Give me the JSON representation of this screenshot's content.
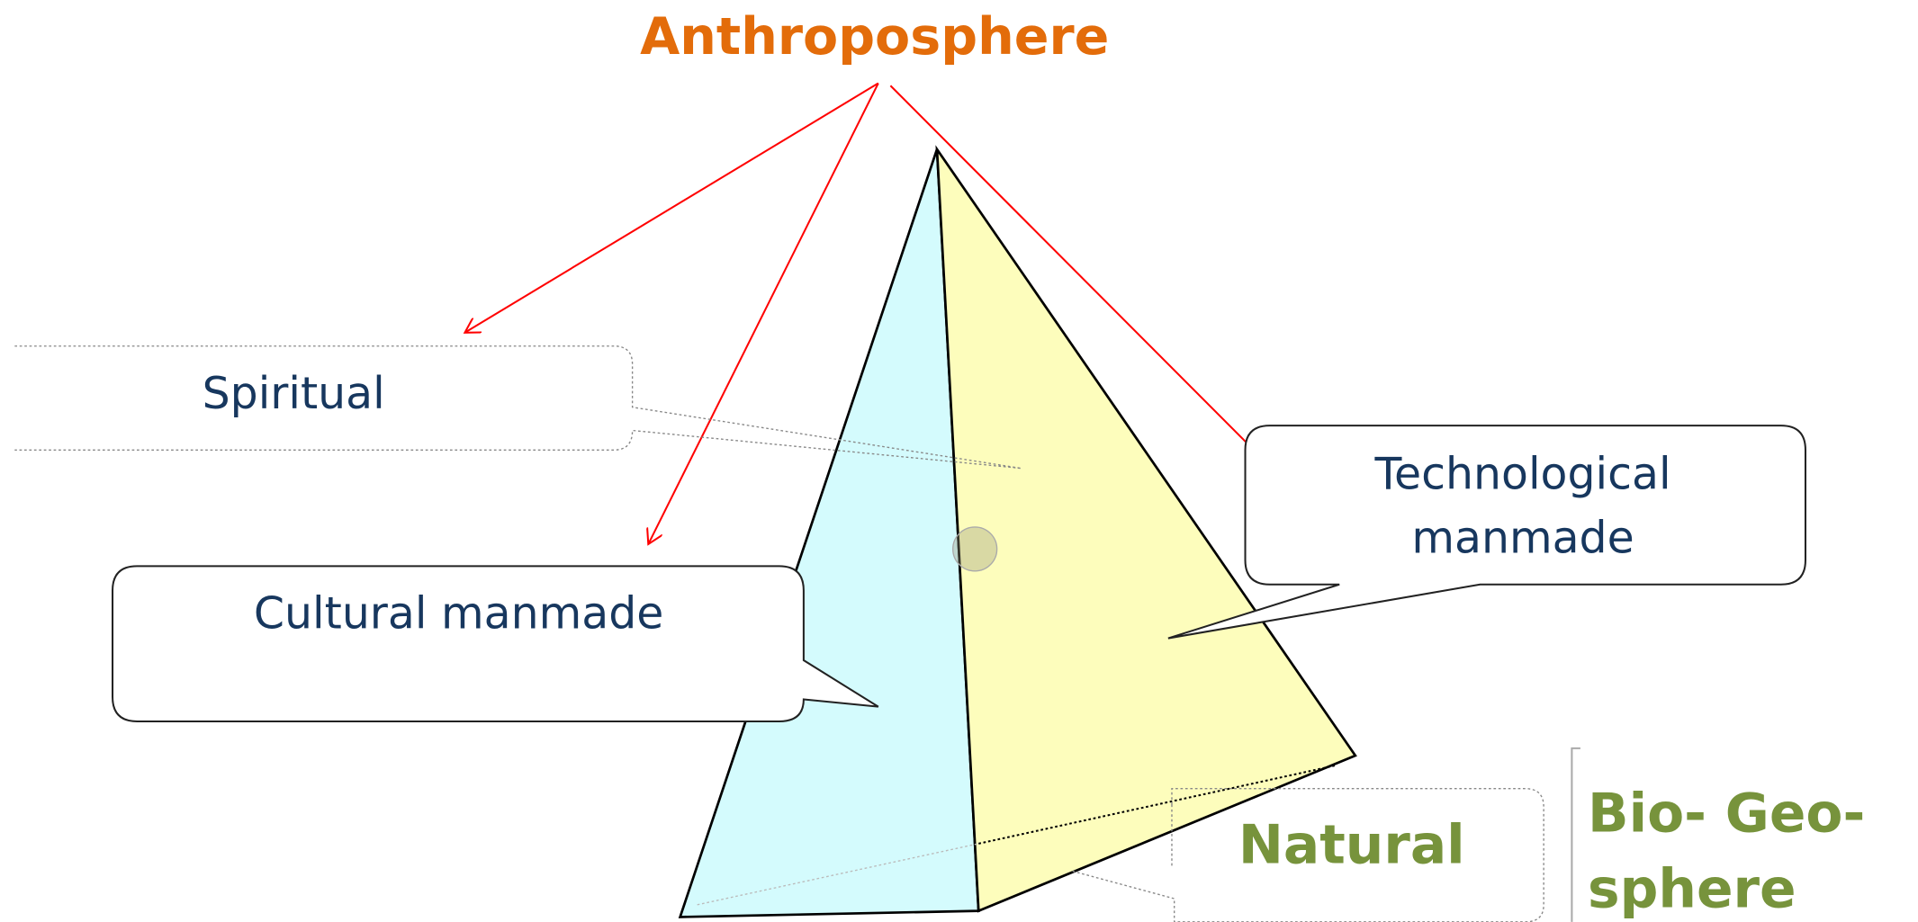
{
  "title": "Anthroposphere",
  "callouts": {
    "spiritual": "Spiritual",
    "technological": [
      "Technological",
      "manmade"
    ],
    "cultural": "Cultural manmade",
    "natural": "Natural"
  },
  "biogeosphere": [
    "Bio- Geo-",
    "sphere"
  ]
}
